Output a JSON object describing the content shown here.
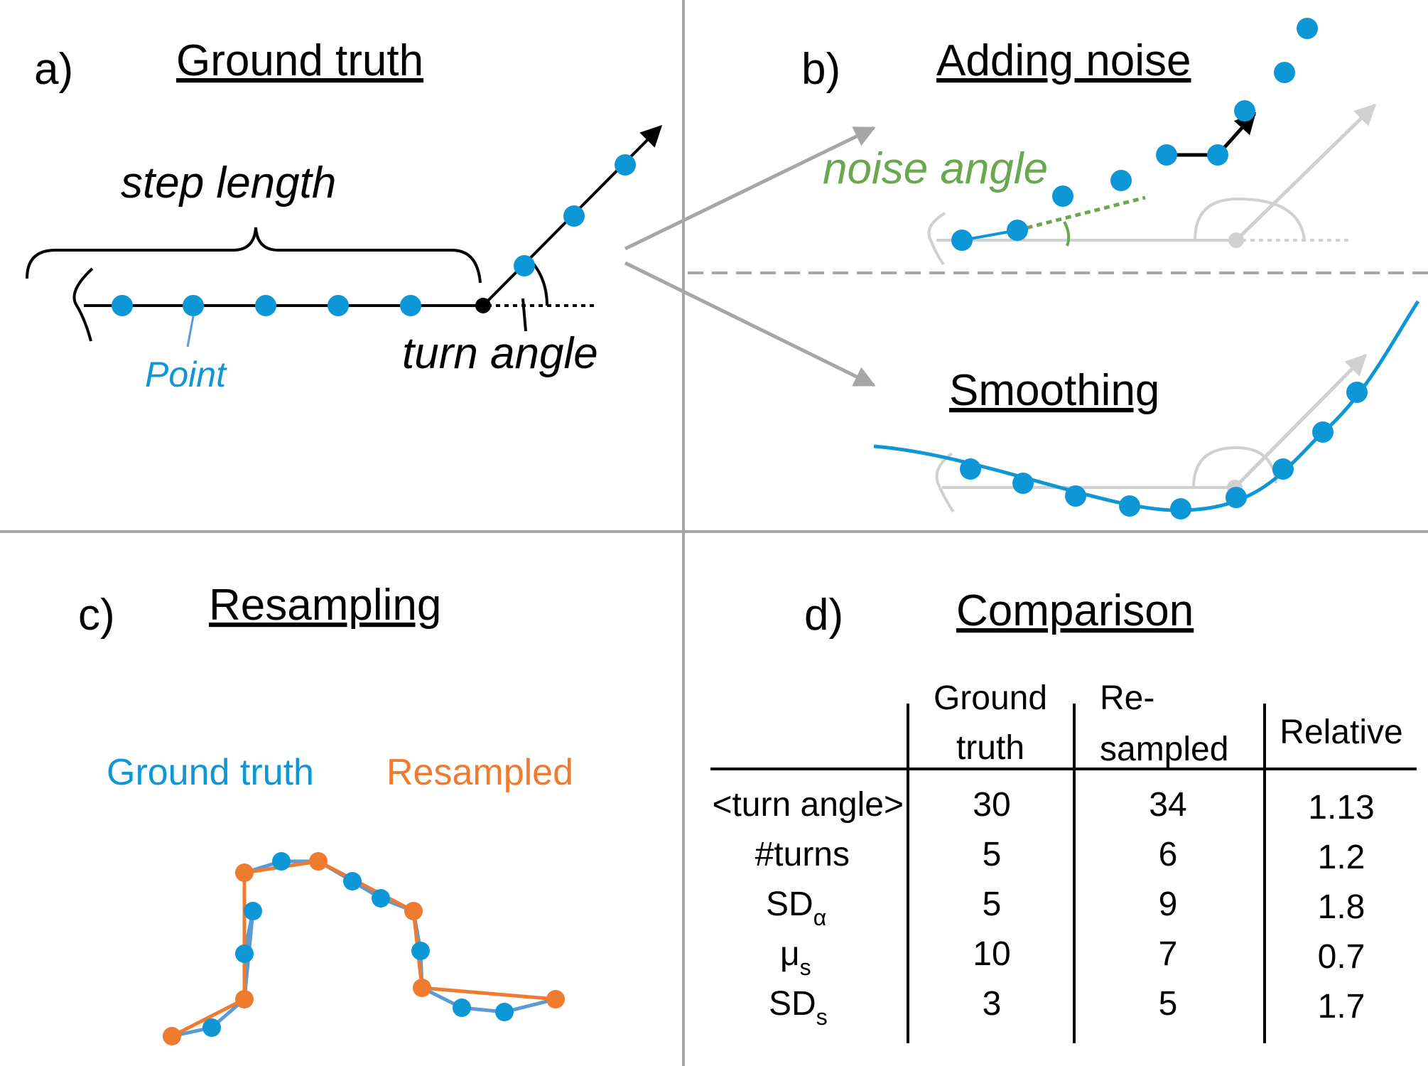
{
  "colors": {
    "point_blue": "#0d97d6",
    "resampled_orange": "#ee7b30",
    "noise_green": "#6aa84f",
    "divider_gray": "#a6a6a6",
    "ghost_gray": "#d0d0d0"
  },
  "panels": {
    "a": {
      "label": "a)",
      "title": "Ground truth",
      "step_length_label": "step length",
      "point_label": "Point",
      "turn_angle_label": "turn angle"
    },
    "b": {
      "label": "b)",
      "title": "Adding noise",
      "noise_angle_label": "noise angle"
    },
    "smoothing": {
      "title": "Smoothing"
    },
    "c": {
      "label": "c)",
      "title": "Resampling",
      "legend_ground_truth": "Ground truth",
      "legend_resampled": "Resampled"
    },
    "d": {
      "label": "d)",
      "title": "Comparison",
      "headers": {
        "ground_truth_l1": "Ground",
        "ground_truth_l2": "truth",
        "resampled_l1": "Re-",
        "resampled_l2": "sampled",
        "relative": "Relative"
      },
      "rows": [
        {
          "label": "<turn angle>",
          "ground_truth": "30",
          "resampled": "34",
          "relative": "1.13"
        },
        {
          "label": "#turns",
          "ground_truth": "5",
          "resampled": "6",
          "relative": "1.2"
        },
        {
          "label": "SD",
          "sub": "α",
          "ground_truth": "5",
          "resampled": "9",
          "relative": "1.8"
        },
        {
          "label": "μ",
          "sub": "s",
          "ground_truth": "10",
          "resampled": "7",
          "relative": "0.7"
        },
        {
          "label": "SD",
          "sub": "s",
          "ground_truth": "3",
          "resampled": "5",
          "relative": "1.7"
        }
      ]
    }
  }
}
